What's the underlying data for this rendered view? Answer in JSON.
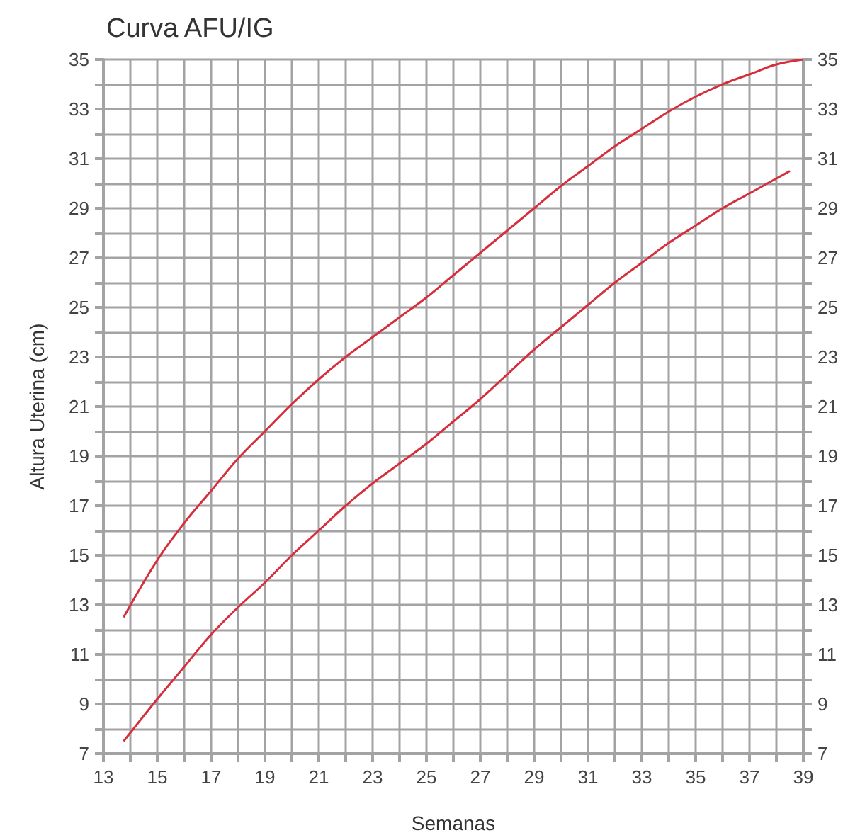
{
  "chart_data": {
    "type": "line",
    "title": "Curva AFU/IG",
    "xlabel": "Semanas",
    "ylabel": "Altura Uterina (cm)",
    "series": [
      {
        "color": "#d62e3c",
        "x": [
          13.75,
          15,
          16,
          17,
          18,
          19,
          20,
          21,
          22,
          23,
          24,
          25,
          26,
          27,
          28,
          29,
          30,
          31,
          32,
          33,
          34,
          35,
          36,
          37,
          38,
          39
        ],
        "values": [
          12.5,
          14.8,
          16.3,
          17.6,
          18.9,
          20.0,
          21.1,
          22.1,
          23.0,
          23.8,
          24.6,
          25.4,
          26.3,
          27.2,
          28.1,
          29.0,
          29.9,
          30.7,
          31.5,
          32.2,
          32.9,
          33.5,
          34.0,
          34.4,
          34.8,
          35
        ]
      },
      {
        "color": "#d62e3c",
        "x": [
          13.75,
          15,
          16,
          17,
          18,
          19,
          20,
          21,
          22,
          23,
          24,
          25,
          26,
          27,
          28,
          29,
          30,
          31,
          32,
          33,
          34,
          35,
          36,
          37,
          38,
          38.5
        ],
        "values": [
          7.5,
          9.2,
          10.5,
          11.8,
          12.9,
          13.9,
          15.0,
          16.0,
          17.0,
          17.9,
          18.7,
          19.5,
          20.4,
          21.3,
          22.3,
          23.3,
          24.2,
          25.1,
          26.0,
          26.8,
          27.6,
          28.3,
          29.0,
          29.6,
          30.2,
          30.5
        ]
      }
    ],
    "xlim": [
      13,
      39
    ],
    "xticks": [
      13,
      {
        "value": 14,
        "label": null
      },
      15,
      {
        "value": 16,
        "label": null
      },
      17,
      {
        "value": 18,
        "label": null
      },
      19,
      {
        "value": 20,
        "label": null
      },
      21,
      {
        "value": 22,
        "label": null
      },
      23,
      {
        "value": 24,
        "label": null
      },
      25,
      {
        "value": 26,
        "label": null
      },
      27,
      {
        "value": 28,
        "label": null
      },
      29,
      {
        "value": 30,
        "label": null
      },
      31,
      {
        "value": 32,
        "label": null
      },
      33,
      {
        "value": 34,
        "label": null
      },
      35,
      {
        "value": 36,
        "label": null
      },
      37,
      {
        "value": 38,
        "label": null
      },
      39
    ],
    "ylim": [
      7,
      35
    ],
    "yticks": [
      7,
      {
        "value": 8,
        "label": null
      },
      9,
      {
        "value": 10,
        "label": null
      },
      11,
      {
        "value": 12,
        "label": null
      },
      13,
      {
        "value": 14,
        "label": null
      },
      15,
      {
        "value": 16,
        "label": null
      },
      17,
      {
        "value": 18,
        "label": null
      },
      19,
      {
        "value": 20,
        "label": null
      },
      21,
      {
        "value": 22,
        "label": null
      },
      23,
      {
        "value": 24,
        "label": null
      },
      25,
      {
        "value": 26,
        "label": null
      },
      27,
      {
        "value": 28,
        "label": null
      },
      29,
      {
        "value": 30,
        "label": null
      },
      31,
      {
        "value": 32,
        "label": null
      },
      33,
      {
        "value": 34,
        "label": null
      },
      35
    ],
    "y2lim": [
      7,
      35
    ],
    "y2ticks": [
      7,
      {
        "value": 8,
        "label": null
      },
      9,
      {
        "value": 10,
        "label": null
      },
      11,
      {
        "value": 12,
        "label": null
      },
      13,
      {
        "value": 14,
        "label": null
      },
      15,
      {
        "value": 16,
        "label": null
      },
      17,
      {
        "value": 18,
        "label": null
      },
      19,
      {
        "value": 20,
        "label": null
      },
      21,
      {
        "value": 22,
        "label": null
      },
      23,
      {
        "value": 24,
        "label": null
      },
      25,
      {
        "value": 26,
        "label": null
      },
      27,
      {
        "value": 28,
        "label": null
      },
      29,
      {
        "value": 30,
        "label": null
      },
      31,
      {
        "value": 32,
        "label": null
      },
      33,
      {
        "value": 34,
        "label": null
      },
      35
    ],
    "grid": true,
    "marker": "none",
    "line_style": "solid"
  }
}
